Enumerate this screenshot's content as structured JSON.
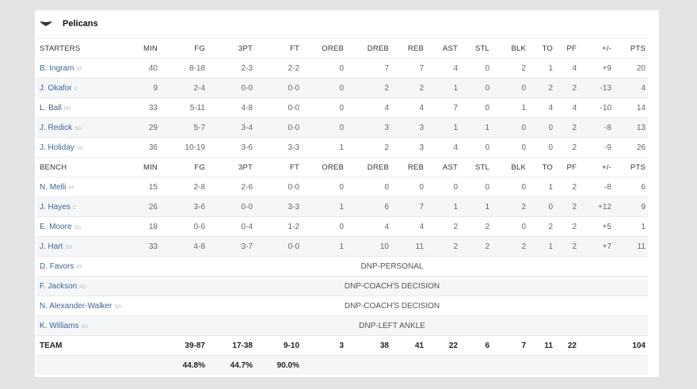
{
  "team": {
    "name": "Pelicans",
    "logo_icon": "pelican-wings-icon"
  },
  "columns": [
    "MIN",
    "FG",
    "3PT",
    "FT",
    "OREB",
    "DREB",
    "REB",
    "AST",
    "STL",
    "BLK",
    "TO",
    "PF",
    "+/-",
    "PTS"
  ],
  "starters_label": "STARTERS",
  "bench_label": "BENCH",
  "starters": [
    {
      "name": "B. Ingram",
      "pos": "SF",
      "stats": [
        "40",
        "8-18",
        "2-3",
        "2-2",
        "0",
        "7",
        "7",
        "4",
        "0",
        "2",
        "1",
        "4",
        "+9",
        "20"
      ]
    },
    {
      "name": "J. Okafor",
      "pos": "C",
      "stats": [
        "9",
        "2-4",
        "0-0",
        "0-0",
        "0",
        "2",
        "2",
        "1",
        "0",
        "0",
        "2",
        "2",
        "-13",
        "4"
      ]
    },
    {
      "name": "L. Ball",
      "pos": "PG",
      "stats": [
        "33",
        "5-11",
        "4-8",
        "0-0",
        "0",
        "4",
        "4",
        "7",
        "0",
        "1",
        "4",
        "4",
        "-10",
        "14"
      ]
    },
    {
      "name": "J. Redick",
      "pos": "SG",
      "stats": [
        "29",
        "5-7",
        "3-4",
        "0-0",
        "0",
        "3",
        "3",
        "1",
        "1",
        "0",
        "0",
        "2",
        "-8",
        "13"
      ]
    },
    {
      "name": "J. Holiday",
      "pos": "SG",
      "stats": [
        "36",
        "10-19",
        "3-6",
        "3-3",
        "1",
        "2",
        "3",
        "4",
        "0",
        "0",
        "0",
        "2",
        "-9",
        "26"
      ]
    }
  ],
  "bench": [
    {
      "name": "N. Melli",
      "pos": "PF",
      "stats": [
        "15",
        "2-8",
        "2-6",
        "0-0",
        "0",
        "0",
        "0",
        "0",
        "0",
        "0",
        "1",
        "2",
        "-8",
        "6"
      ]
    },
    {
      "name": "J. Hayes",
      "pos": "C",
      "stats": [
        "26",
        "3-6",
        "0-0",
        "3-3",
        "1",
        "6",
        "7",
        "1",
        "1",
        "2",
        "0",
        "2",
        "+12",
        "9"
      ]
    },
    {
      "name": "E. Moore",
      "pos": "SG",
      "stats": [
        "18",
        "0-6",
        "0-4",
        "1-2",
        "0",
        "4",
        "4",
        "2",
        "2",
        "0",
        "2",
        "2",
        "+5",
        "1"
      ]
    },
    {
      "name": "J. Hart",
      "pos": "SG",
      "stats": [
        "33",
        "4-8",
        "3-7",
        "0-0",
        "1",
        "10",
        "11",
        "2",
        "2",
        "2",
        "1",
        "2",
        "+7",
        "11"
      ]
    }
  ],
  "dnp": [
    {
      "name": "D. Favors",
      "pos": "PF",
      "status": "DNP-PERSONAL"
    },
    {
      "name": "F. Jackson",
      "pos": "PG",
      "status": "DNP-COACH'S DECISION"
    },
    {
      "name": "N. Alexander-Walker",
      "pos": "SG",
      "status": "DNP-COACH'S DECISION"
    },
    {
      "name": "K. Williams",
      "pos": "SG",
      "status": "DNP-LEFT ANKLE"
    }
  ],
  "totals": {
    "label": "TEAM",
    "stats": [
      "",
      "39-87",
      "17-38",
      "9-10",
      "3",
      "38",
      "41",
      "22",
      "6",
      "7",
      "11",
      "22",
      "",
      "104"
    ],
    "pcts": [
      "",
      "44.8%",
      "44.7%",
      "90.0%",
      "",
      "",
      "",
      "",
      "",
      "",
      "",
      "",
      "",
      ""
    ]
  }
}
